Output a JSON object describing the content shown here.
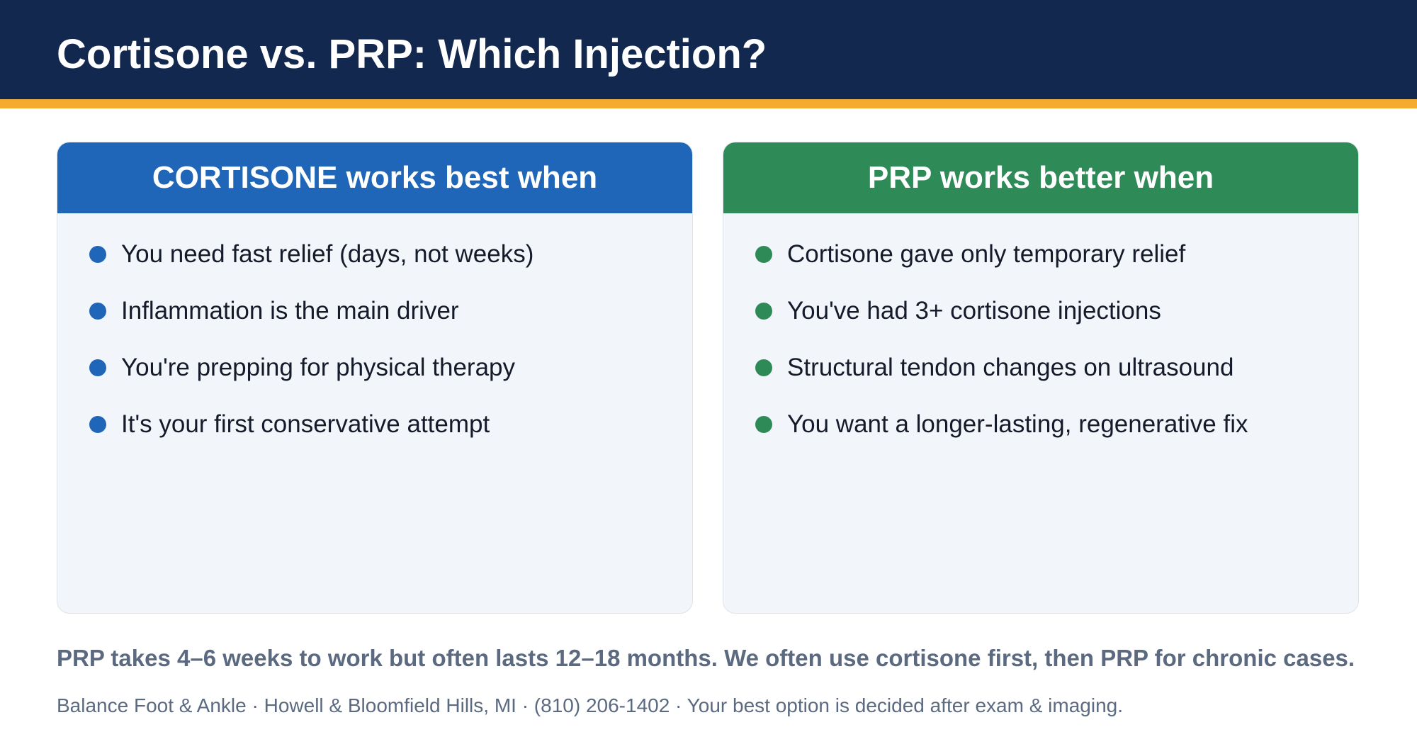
{
  "header": {
    "title": "Cortisone vs. PRP: Which Injection?"
  },
  "cards": {
    "cortisone": {
      "title": "CORTISONE works best when",
      "items": [
        "You need fast relief (days, not weeks)",
        "Inflammation is the main driver",
        "You're prepping for physical therapy",
        "It's your first conservative attempt"
      ]
    },
    "prp": {
      "title": "PRP works better when",
      "items": [
        "Cortisone gave only temporary relief",
        "You've had 3+ cortisone injections",
        "Structural tendon changes on ultrasound",
        "You want a longer-lasting, regenerative fix"
      ]
    }
  },
  "summary": "PRP takes 4–6 weeks to work but often lasts 12–18 months. We often use cortisone first, then PRP for chronic cases.",
  "footer": "Balance Foot & Ankle · Howell & Bloomfield Hills, MI · (810) 206-1402 · Your best option is decided after exam & imaging.",
  "colors": {
    "header_bg": "#12284f",
    "accent": "#f5ab2f",
    "cortisone_blue": "#1f66b8",
    "prp_green": "#2e8b57"
  }
}
